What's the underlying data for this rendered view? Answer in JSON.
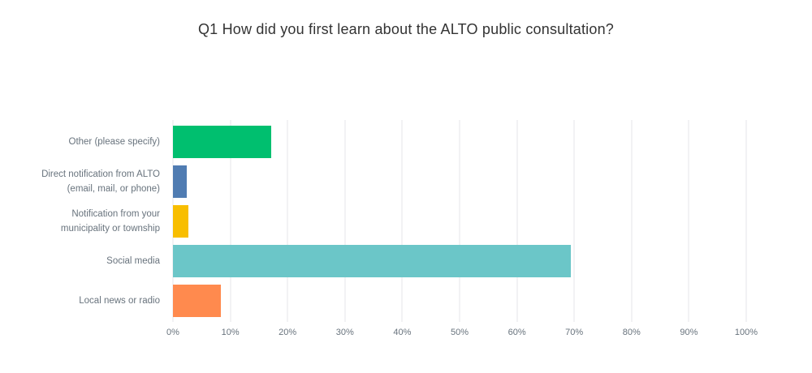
{
  "chart_data": {
    "type": "bar",
    "orientation": "horizontal",
    "title": "Q1 How did you first learn about the ALTO public consultation?",
    "categories": [
      "Other (please specify)",
      "Direct notification from ALTO (email, mail, or phone)",
      "Notification from your municipality or township",
      "Social media",
      "Local news or radio"
    ],
    "values": [
      17.1,
      2.4,
      2.7,
      69.4,
      8.4
    ],
    "bar_colors": [
      "#00BF6F",
      "#507CB2",
      "#F8BE00",
      "#6BC6C8",
      "#FF8A4E"
    ],
    "x_ticks": [
      "0%",
      "10%",
      "20%",
      "30%",
      "40%",
      "50%",
      "60%",
      "70%",
      "80%",
      "90%",
      "100%"
    ],
    "xlim": [
      0,
      100
    ],
    "xlabel": "",
    "ylabel": "",
    "grid": "vertical",
    "legend": "none"
  },
  "style": {
    "background": "#ffffff",
    "gridline_color": "#e4e6e8",
    "axis_text_color": "#68737d",
    "title_color": "#333333"
  }
}
